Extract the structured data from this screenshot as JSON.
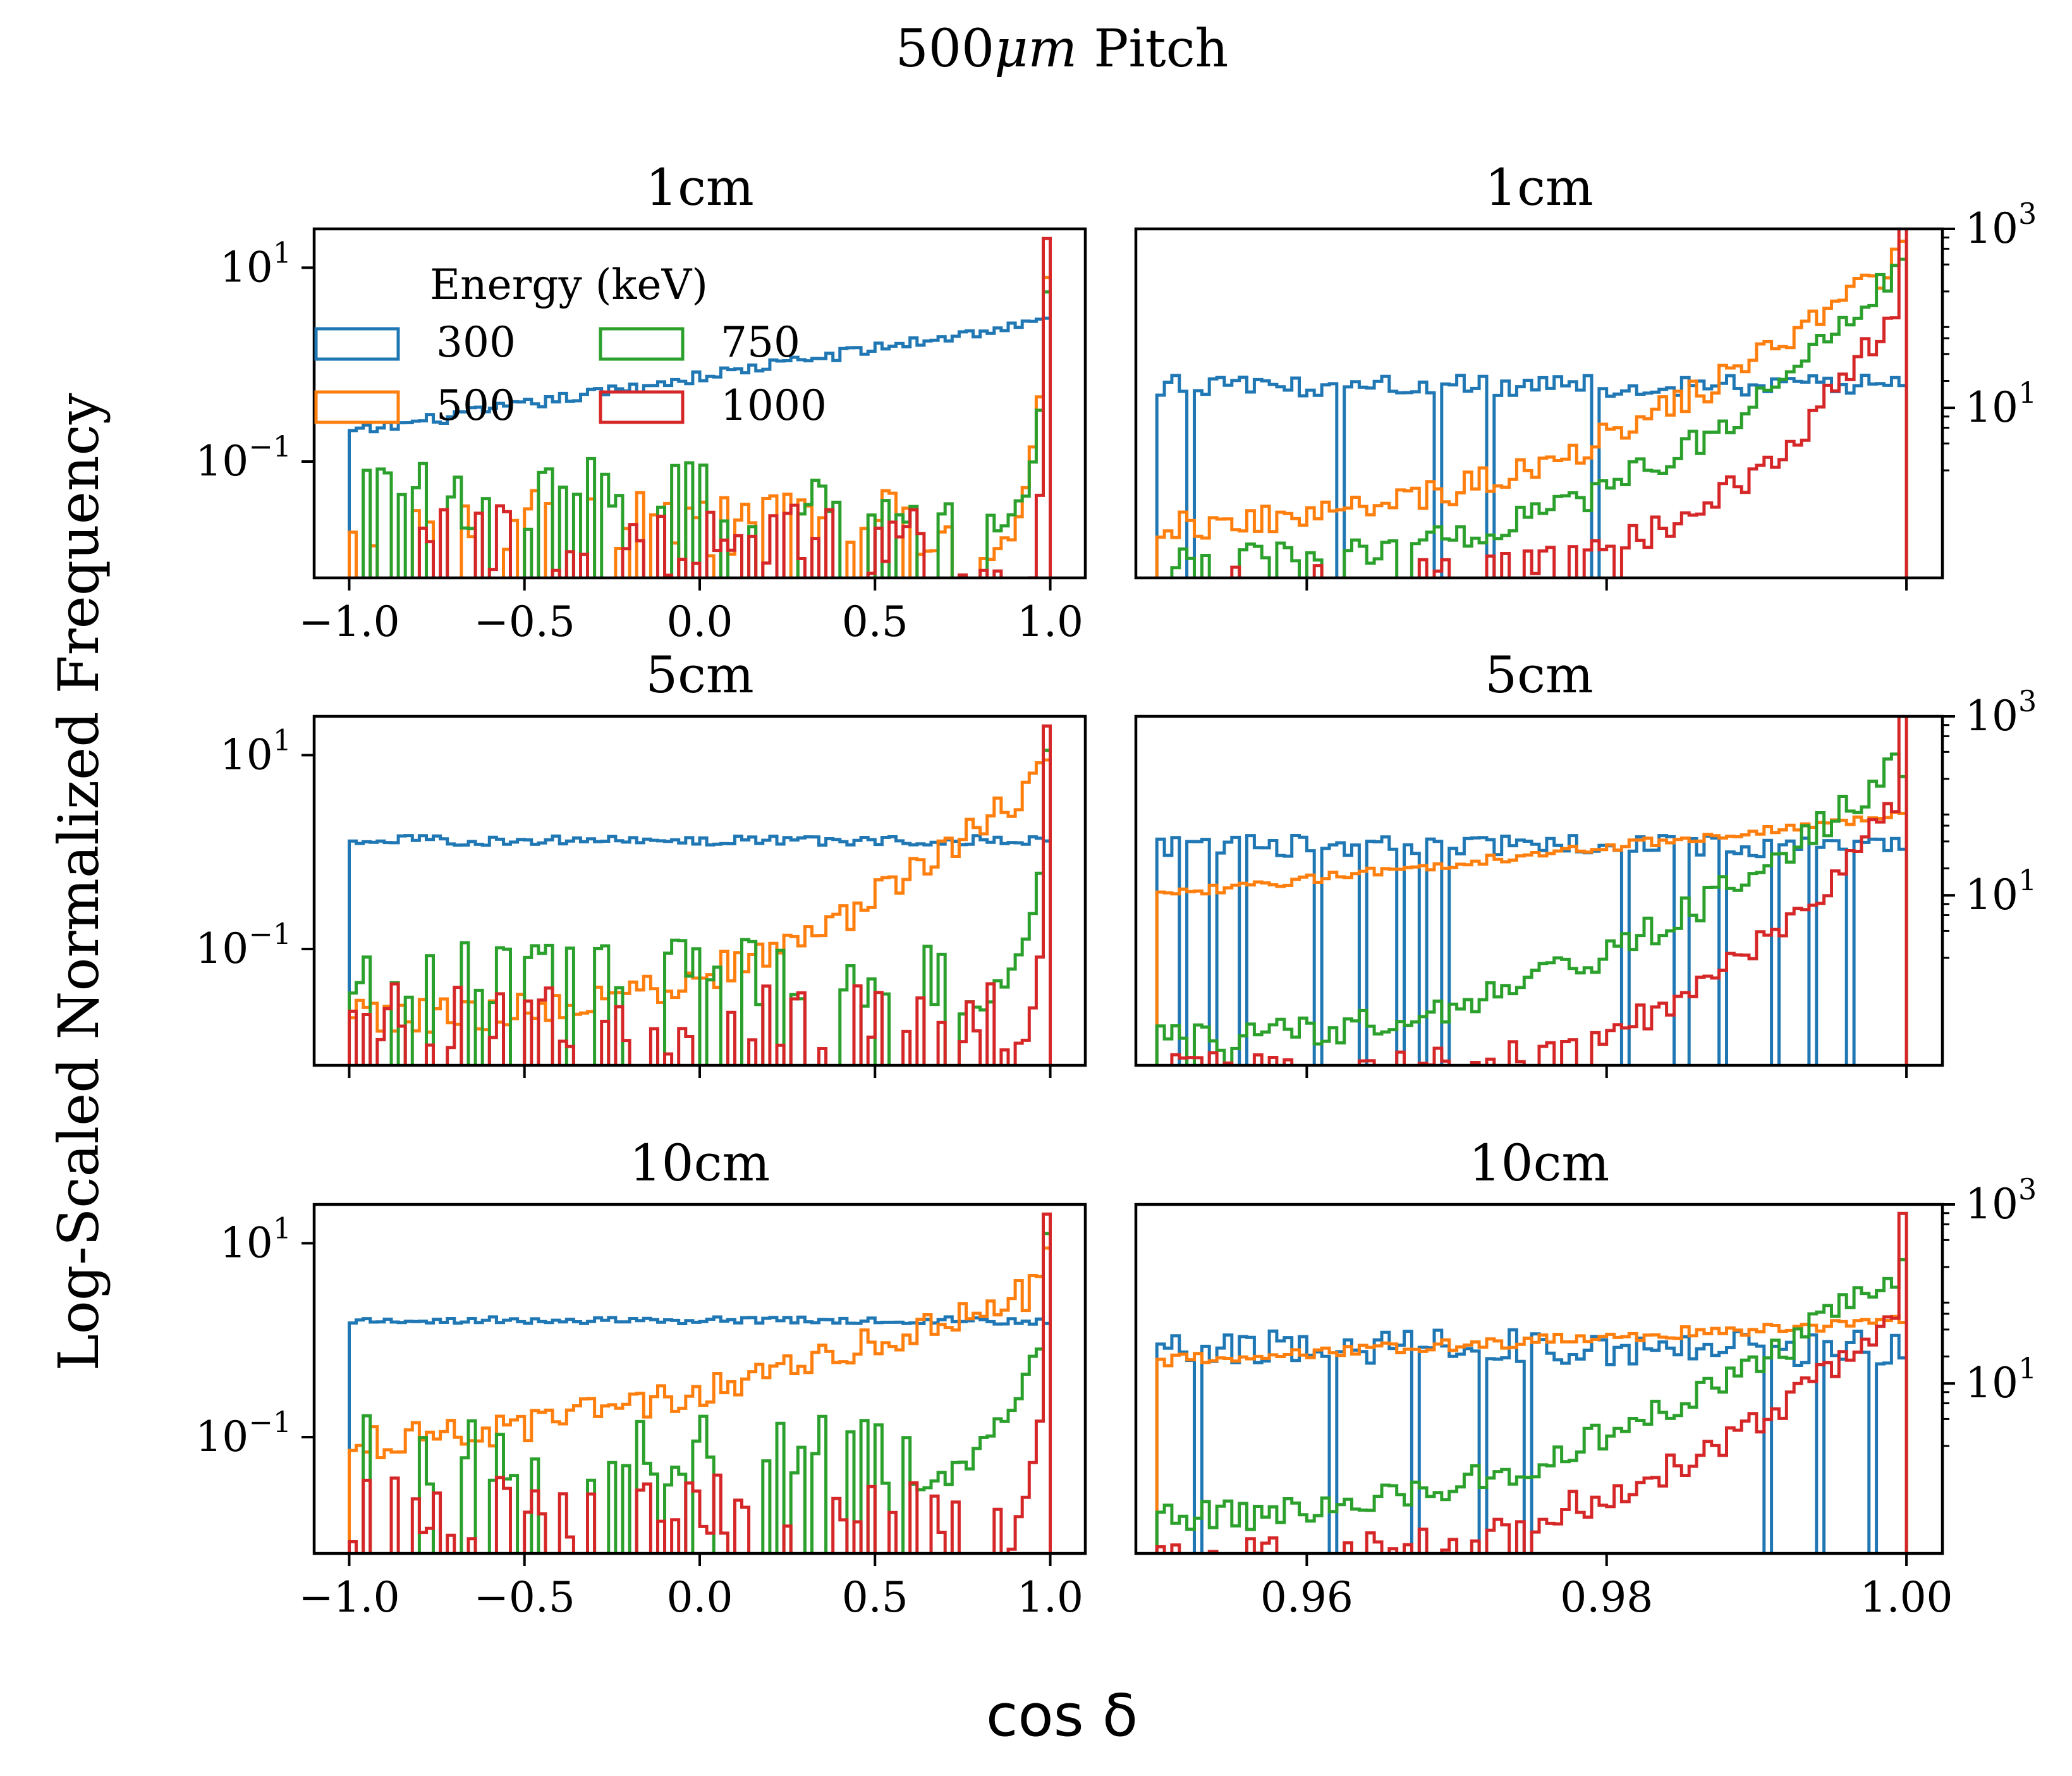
{
  "chart_data": [
    {
      "type": "histogram-step",
      "title": "1cm",
      "xlabel": "cos δ",
      "ylabel": "Log-Scaled Normalized Frequency",
      "yscale": "log",
      "xlim": [
        -1.1,
        1.1
      ],
      "ylim_log10": [
        -2.2,
        1.4
      ],
      "xticks": [
        -1.0,
        -0.5,
        0.0,
        0.5,
        1.0
      ],
      "xtick_labels": [
        "−1.0",
        "−0.5",
        "0.0",
        "0.5",
        "1.0"
      ],
      "yticks": [
        {
          "base": "10",
          "exp": "1",
          "value": 1
        },
        {
          "base": "10",
          "exp": "−1",
          "value": -1
        }
      ],
      "legend": {
        "title": "Energy (keV)",
        "placement": "upper-left"
      },
      "series": [
        {
          "name": "300",
          "shape": {
            "kind": "linear",
            "start": -0.7,
            "end": 0.45,
            "noise": 0.06
          }
        },
        {
          "name": "500",
          "shape": {
            "kind": "spike",
            "base": -2.0,
            "from": 0.8,
            "top": 0.35,
            "pow": 3,
            "drop": 0.25,
            "spike": 0.9
          }
        },
        {
          "name": "750",
          "shape": {
            "kind": "spike",
            "base": -1.7,
            "from": 0.85,
            "top": 0.3,
            "pow": 3,
            "drop": 0.3,
            "spike": 0.75
          }
        },
        {
          "name": "1000",
          "shape": {
            "kind": "spike",
            "base": -2.2,
            "from": 0.95,
            "top": 0.0,
            "pow": 2,
            "drop": 0.3,
            "spike": 1.3
          }
        }
      ]
    },
    {
      "type": "histogram-step",
      "title": "1cm",
      "yscale": "log",
      "xlim": [
        0.9486,
        1.0024
      ],
      "ylim_log10": [
        -0.9,
        3.0
      ],
      "xticks": [
        0.96,
        0.98,
        1.0
      ],
      "xtick_labels": [],
      "yticks": [
        {
          "base": "10",
          "exp": "3",
          "value": 3
        },
        {
          "base": "10",
          "exp": "1",
          "value": 1
        }
      ],
      "series": [
        {
          "name": "300",
          "shape": {
            "kind": "flat",
            "level": 1.25,
            "noise": 0.12,
            "gaps": 3
          }
        },
        {
          "name": "500",
          "shape": {
            "kind": "rise",
            "start": -0.3,
            "end": 2.7,
            "pow": 2.2
          }
        },
        {
          "name": "750",
          "shape": {
            "kind": "rise",
            "start": -0.7,
            "end": 2.6,
            "pow": 2.8
          }
        },
        {
          "name": "1000",
          "shape": {
            "kind": "rise",
            "start": -0.9,
            "end": 2.3,
            "pow": 4.5,
            "spike": 3.2
          }
        }
      ]
    },
    {
      "type": "histogram-step",
      "title": "5cm",
      "yscale": "log",
      "xlim": [
        -1.1,
        1.1
      ],
      "ylim_log10": [
        -2.2,
        1.4
      ],
      "xticks": [
        -1.0,
        -0.5,
        0.0,
        0.5,
        1.0
      ],
      "xtick_labels": [],
      "yticks": [
        {
          "base": "10",
          "exp": "1",
          "value": 1
        },
        {
          "base": "10",
          "exp": "−1",
          "value": -1
        }
      ],
      "series": [
        {
          "name": "300",
          "shape": {
            "kind": "flat",
            "level": 0.12,
            "noise": 0.05
          }
        },
        {
          "name": "500",
          "shape": {
            "kind": "rise",
            "start": -1.7,
            "end": 0.85,
            "pow": 2.6,
            "spike": 0.95
          }
        },
        {
          "name": "750",
          "shape": {
            "kind": "spike",
            "base": -1.6,
            "from": 0.75,
            "top": 0.0,
            "pow": 2.5,
            "drop": 0.2,
            "spike": 1.05
          }
        },
        {
          "name": "1000",
          "shape": {
            "kind": "spike",
            "base": -2.1,
            "from": 0.9,
            "top": -0.6,
            "pow": 2,
            "drop": 0.4,
            "spike": 1.3
          }
        }
      ]
    },
    {
      "type": "histogram-step",
      "title": "5cm",
      "yscale": "log",
      "xlim": [
        0.9486,
        1.0024
      ],
      "ylim_log10": [
        -0.9,
        3.0
      ],
      "xticks": [
        0.96,
        0.98,
        1.0
      ],
      "xtick_labels": [],
      "yticks": [
        {
          "base": "10",
          "exp": "3",
          "value": 3
        },
        {
          "base": "10",
          "exp": "1",
          "value": 1
        }
      ],
      "series": [
        {
          "name": "300",
          "shape": {
            "kind": "flat",
            "level": 1.55,
            "noise": 0.12,
            "gaps": 4
          }
        },
        {
          "name": "500",
          "shape": {
            "kind": "linear",
            "start": 1.0,
            "end": 1.9,
            "noise": 0.05
          }
        },
        {
          "name": "750",
          "shape": {
            "kind": "rise",
            "start": -0.6,
            "end": 2.5,
            "pow": 2.3
          }
        },
        {
          "name": "1000",
          "shape": {
            "kind": "rise",
            "start": -0.9,
            "end": 2.2,
            "pow": 4.0,
            "spike": 3.0
          }
        }
      ]
    },
    {
      "type": "histogram-step",
      "title": "10cm",
      "yscale": "log",
      "xlim": [
        -1.1,
        1.1
      ],
      "ylim_log10": [
        -2.2,
        1.4
      ],
      "xticks": [
        -1.0,
        -0.5,
        0.0,
        0.5,
        1.0
      ],
      "xtick_labels": [
        "−1.0",
        "−0.5",
        "0.0",
        "0.5",
        "1.0"
      ],
      "yticks": [
        {
          "base": "10",
          "exp": "1",
          "value": 1
        },
        {
          "base": "10",
          "exp": "−1",
          "value": -1
        }
      ],
      "series": [
        {
          "name": "300",
          "shape": {
            "kind": "flat",
            "level": 0.2,
            "noise": 0.04
          }
        },
        {
          "name": "500",
          "shape": {
            "kind": "rise",
            "start": -1.05,
            "end": 0.55,
            "pow": 1.6,
            "spike": 0.95
          }
        },
        {
          "name": "750",
          "shape": {
            "kind": "spike",
            "base": -1.5,
            "from": 0.6,
            "top": 0.1,
            "pow": 2.2,
            "drop": 0.15,
            "spike": 1.1
          }
        },
        {
          "name": "1000",
          "shape": {
            "kind": "spike",
            "base": -2.1,
            "from": 0.88,
            "top": -0.4,
            "pow": 2,
            "drop": 0.35,
            "spike": 1.3
          }
        }
      ]
    },
    {
      "type": "histogram-step",
      "title": "10cm",
      "yscale": "log",
      "xlim": [
        0.9486,
        1.0024
      ],
      "ylim_log10": [
        -0.9,
        3.0
      ],
      "xticks": [
        0.96,
        0.98,
        1.0
      ],
      "xtick_labels": [
        "0.96",
        "0.98",
        "1.00"
      ],
      "yticks": [
        {
          "base": "10",
          "exp": "3",
          "value": 3
        },
        {
          "base": "10",
          "exp": "1",
          "value": 1
        }
      ],
      "series": [
        {
          "name": "300",
          "shape": {
            "kind": "flat",
            "level": 1.4,
            "noise": 0.2,
            "gaps": 3
          }
        },
        {
          "name": "500",
          "shape": {
            "kind": "linear",
            "start": 1.25,
            "end": 1.7,
            "noise": 0.07
          }
        },
        {
          "name": "750",
          "shape": {
            "kind": "rise",
            "start": -0.5,
            "end": 2.3,
            "pow": 2.2
          }
        },
        {
          "name": "1000",
          "shape": {
            "kind": "rise",
            "start": -0.9,
            "end": 1.8,
            "pow": 2.8,
            "spike": 2.9
          }
        }
      ]
    }
  ],
  "figure": {
    "suptitle_text": "500",
    "suptitle_unit": "μm",
    "suptitle_tail": " Pitch",
    "ylabel": "Log-Scaled Normalized Frequency",
    "xlabel": "cos δ"
  },
  "legend": {
    "title": "Energy (keV)",
    "labels": [
      "300",
      "500",
      "750",
      "1000"
    ]
  },
  "colors": {
    "300": "#1f77b4",
    "500": "#ff7f0e",
    "750": "#2ca02c",
    "1000": "#d62728"
  }
}
